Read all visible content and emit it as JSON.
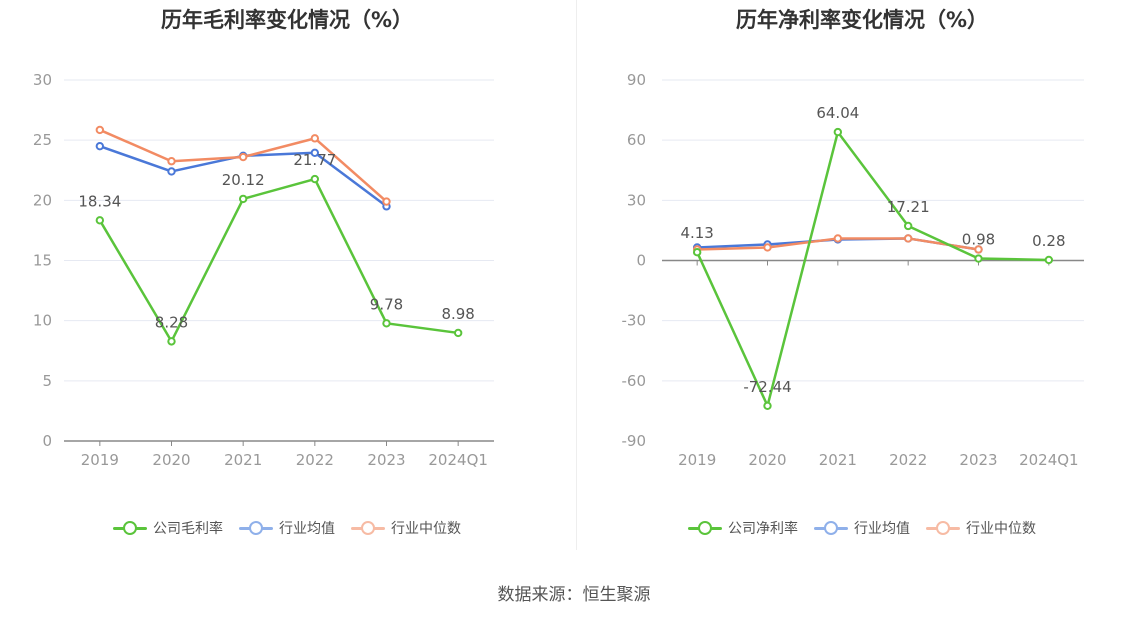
{
  "source_text": "数据来源：恒生聚源",
  "chart_data": [
    {
      "type": "line",
      "title": "历年毛利率变化情况（%）",
      "categories": [
        "2019",
        "2020",
        "2021",
        "2022",
        "2023",
        "2024Q1"
      ],
      "ylim": [
        0,
        30
      ],
      "yticks": [
        0,
        5,
        10,
        15,
        20,
        25,
        30
      ],
      "grid": true,
      "legend_position": "bottom",
      "series": [
        {
          "name": "公司毛利率",
          "color": "#5ac43b",
          "values": [
            18.34,
            8.28,
            20.12,
            21.77,
            9.78,
            8.98
          ],
          "labels": [
            "18.34",
            "8.28",
            "20.12",
            "21.77",
            "9.78",
            "8.98"
          ]
        },
        {
          "name": "行业均值",
          "color": "#4a78d8",
          "values": [
            24.5,
            22.4,
            23.7,
            23.95,
            19.5,
            null
          ]
        },
        {
          "name": "行业中位数",
          "color": "#f28b63",
          "values": [
            25.85,
            23.25,
            23.6,
            25.15,
            19.9,
            null
          ]
        }
      ]
    },
    {
      "type": "line",
      "title": "历年净利率变化情况（%）",
      "categories": [
        "2019",
        "2020",
        "2021",
        "2022",
        "2023",
        "2024Q1"
      ],
      "ylim": [
        -90,
        90
      ],
      "yticks": [
        -90,
        -60,
        -30,
        0,
        30,
        60,
        90
      ],
      "grid": true,
      "legend_position": "bottom",
      "series": [
        {
          "name": "公司净利率",
          "color": "#5ac43b",
          "values": [
            4.13,
            -72.44,
            64.04,
            17.21,
            0.98,
            0.28
          ],
          "labels": [
            "4.13",
            "-72.44",
            "64.04",
            "17.21",
            "0.98",
            "0.28"
          ]
        },
        {
          "name": "行业均值",
          "color": "#4a78d8",
          "values": [
            6.5,
            8.0,
            10.5,
            11.0,
            5.5,
            null
          ]
        },
        {
          "name": "行业中位数",
          "color": "#f28b63",
          "values": [
            5.5,
            6.5,
            11.0,
            11.0,
            5.5,
            null
          ]
        }
      ]
    }
  ]
}
